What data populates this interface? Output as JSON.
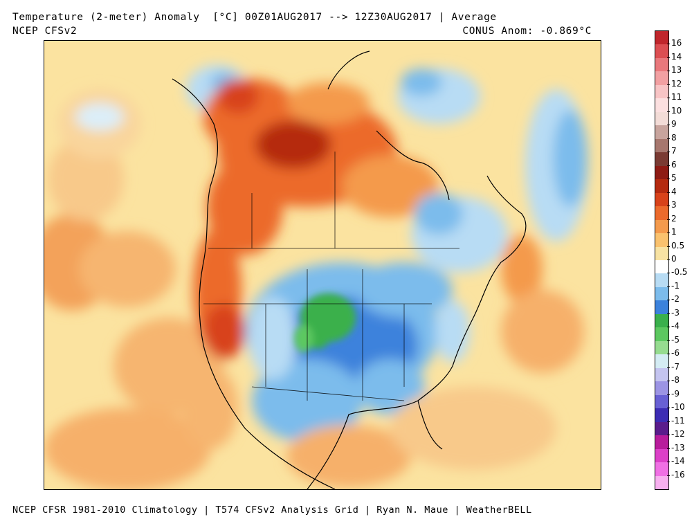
{
  "header": {
    "title": "Temperature (2-meter) Anomaly  [°C] 00Z01AUG2017 --> 12Z30AUG2017 | Average",
    "subtitle": "NCEP CFSv2",
    "conus_anom": "CONUS Anom: -0.869°C"
  },
  "footer": "NCEP CFSR 1981-2010 Climatology | T574 CFSv2 Analysis Grid | Ryan N. Maue | WeatherBELL",
  "colorbar": {
    "labels": [
      "16",
      "14",
      "13",
      "12",
      "11",
      "10",
      "9",
      "8",
      "7",
      "6",
      "5",
      "4",
      "3",
      "2",
      "1",
      "0.5",
      "0",
      "-0.5",
      "-1",
      "-2",
      "-3",
      "-4",
      "-5",
      "-6",
      "-7",
      "-8",
      "-9",
      "-10",
      "-11",
      "-12",
      "-13",
      "-14",
      "-16"
    ],
    "colors": [
      "#c0262c",
      "#dc4e52",
      "#e9787c",
      "#f2a0a2",
      "#f8c4c5",
      "#fce0e0",
      "#f3dcd7",
      "#c8a49d",
      "#a7776e",
      "#7a3b33",
      "#8e1b14",
      "#b52a10",
      "#d8421a",
      "#ec6a2c",
      "#f49a4c",
      "#fac26e",
      "#f8e3a3",
      "#ffffff",
      "#b8dcf4",
      "#7cbcec",
      "#3c82dc",
      "#3ab04c",
      "#5cc860",
      "#96dc90",
      "#d4ecf4",
      "#c4c4f0",
      "#9c94e4",
      "#6860d4",
      "#3c2cb4",
      "#5a1c8c",
      "#b81c9c",
      "#dc40c8",
      "#f070e4",
      "#f8b0f0"
    ],
    "scale_colors": {
      "neutral": "#ffffff",
      "warm_light": "#fac26e",
      "warm_mid": "#ec6a2c",
      "warm_strong": "#b52a10",
      "cool_light": "#b8dcf4",
      "cool_mid": "#7cbcec",
      "cool_strong": "#3c82dc",
      "green": "#3ab04c"
    }
  }
}
